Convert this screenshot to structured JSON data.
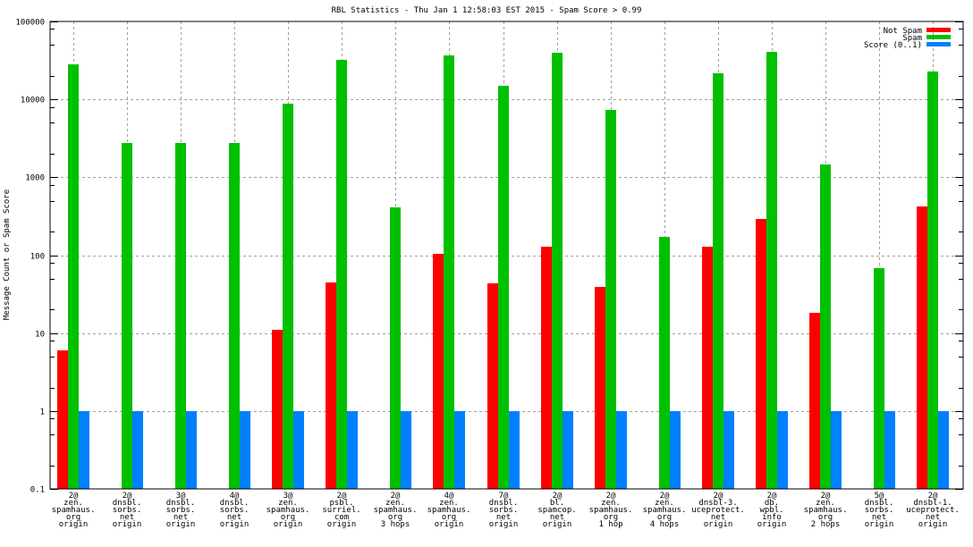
{
  "chart_data": {
    "type": "bar",
    "title": "RBL Statistics - Thu Jan  1 12:58:03 EST 2015 - Spam Score > 0.99",
    "xlabel": "",
    "ylabel": "Message Count or Spam Score",
    "yscale": "log",
    "ylim": [
      0.1,
      100000
    ],
    "yticks": [
      "0.1",
      "1",
      "10",
      "100",
      "1000",
      "10000",
      "100000"
    ],
    "grid": true,
    "legend_position": "top-right",
    "categories": [
      [
        "2@",
        "zen.",
        "spamhaus.",
        "org",
        "origin"
      ],
      [
        "2@",
        "dnsbl.",
        "sorbs.",
        "net",
        "origin"
      ],
      [
        "3@",
        "dnsbl.",
        "sorbs.",
        "net",
        "origin"
      ],
      [
        "4@",
        "dnsbl.",
        "sorbs.",
        "net",
        "origin"
      ],
      [
        "3@",
        "zen.",
        "spamhaus.",
        "org",
        "origin"
      ],
      [
        "2@",
        "psbl.",
        "surriel.",
        "com",
        "origin"
      ],
      [
        "2@",
        "zen.",
        "spamhaus.",
        "org",
        "3 hops"
      ],
      [
        "4@",
        "zen.",
        "spamhaus.",
        "org",
        "origin"
      ],
      [
        "7@",
        "dnsbl.",
        "sorbs.",
        "net",
        "origin"
      ],
      [
        "2@",
        "bl.",
        "spamcop.",
        "net",
        "origin"
      ],
      [
        "2@",
        "zen.",
        "spamhaus.",
        "org",
        "1 hop"
      ],
      [
        "2@",
        "zen.",
        "spamhaus.",
        "org",
        "4 hops"
      ],
      [
        "2@",
        "dnsbl-3.",
        "uceprotect.",
        "net",
        "origin"
      ],
      [
        "2@",
        "db.",
        "wpbl.",
        "info",
        "origin"
      ],
      [
        "2@",
        "zen.",
        "spamhaus.",
        "org",
        "2 hops"
      ],
      [
        "5@",
        "dnsbl.",
        "sorbs.",
        "net",
        "origin"
      ],
      [
        "2@",
        "dnsbl-1.",
        "uceprotect.",
        "net",
        "origin"
      ]
    ],
    "series": [
      {
        "name": "Not Spam",
        "color": "#ff0000",
        "values": [
          6,
          null,
          null,
          null,
          11,
          45,
          null,
          105,
          44,
          130,
          39,
          null,
          128,
          295,
          18,
          null,
          420
        ]
      },
      {
        "name": "Spam",
        "color": "#00c000",
        "values": [
          28000,
          2750,
          2750,
          2750,
          8700,
          32000,
          410,
          37000,
          15000,
          40000,
          7300,
          170,
          21500,
          40500,
          1450,
          68,
          23000
        ]
      },
      {
        "name": "Score (0..1)",
        "color": "#0080ff",
        "values": [
          1,
          1,
          1,
          1,
          1,
          1,
          1,
          1,
          1,
          1,
          1,
          1,
          1,
          1,
          1,
          1,
          1
        ]
      }
    ]
  }
}
